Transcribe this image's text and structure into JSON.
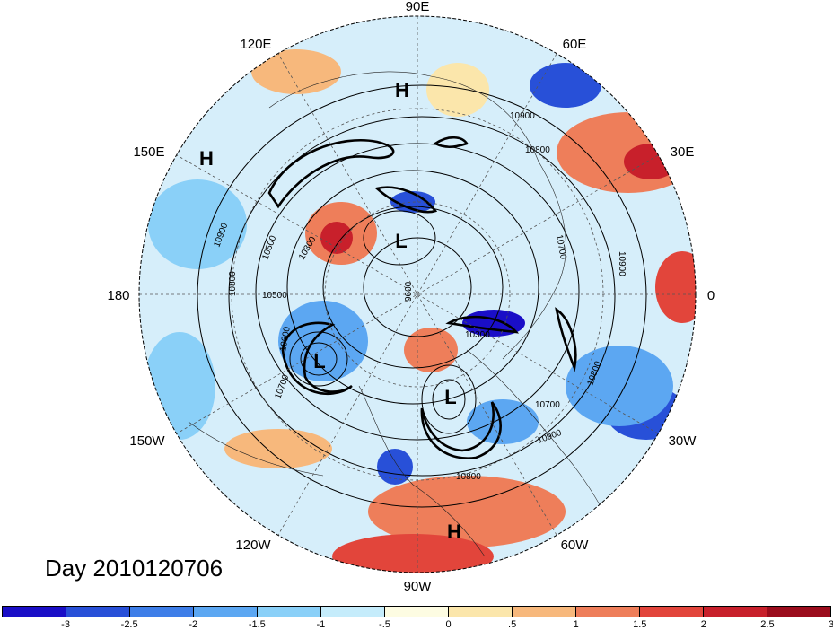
{
  "day_label": "Day 2010120706",
  "lon_labels": [
    {
      "text": "90E",
      "lon": 90
    },
    {
      "text": "60E",
      "lon": 60
    },
    {
      "text": "30E",
      "lon": 30
    },
    {
      "text": "0",
      "lon": 0
    },
    {
      "text": "30W",
      "lon": -30
    },
    {
      "text": "60W",
      "lon": -60
    },
    {
      "text": "90W",
      "lon": -90
    },
    {
      "text": "120W",
      "lon": -120
    },
    {
      "text": "150W",
      "lon": -150
    },
    {
      "text": "180",
      "lon": 180
    },
    {
      "text": "150E",
      "lon": 150
    },
    {
      "text": "120E",
      "lon": 120
    }
  ],
  "pressure_centers": [
    {
      "text": "H",
      "kind": "high"
    },
    {
      "text": "H",
      "kind": "high"
    },
    {
      "text": "L",
      "kind": "low"
    },
    {
      "text": "L",
      "kind": "low"
    },
    {
      "text": "L",
      "kind": "low"
    },
    {
      "text": "H",
      "kind": "high"
    }
  ],
  "contour_labels": [
    "10900",
    "10800",
    "10700",
    "10900",
    "10900",
    "10800",
    "10500",
    "10300",
    "10500",
    "9600",
    "10600",
    "10700",
    "10300",
    "10700",
    "10800",
    "10900",
    "10800"
  ],
  "colorbar": {
    "colors": [
      "#1a0ec7",
      "#2850d8",
      "#3e7ee8",
      "#5ca7f2",
      "#8ad0f8",
      "#c5ecfb",
      "#fdfce2",
      "#fbe6ab",
      "#f7b87c",
      "#ee7e5a",
      "#e2453b",
      "#c8202b",
      "#9b0c1c"
    ],
    "labels": [
      "-3",
      "-2.5",
      "-2",
      "-1.5",
      "-1",
      "-.5",
      "0",
      ".5",
      "1",
      "1.5",
      "2",
      "2.5",
      "3"
    ]
  }
}
